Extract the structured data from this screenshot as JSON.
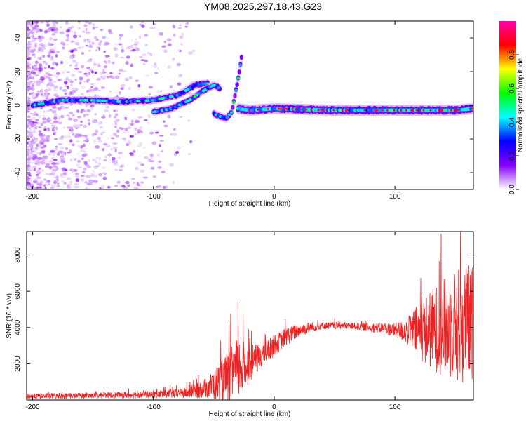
{
  "title": "YM08.2025.297.18.43.G23",
  "colors": {
    "snr_line": "#ee2222",
    "frame": "#000000"
  },
  "chart_data": [
    {
      "type": "heatmap",
      "title": "",
      "xlabel": "Height of straight line (km)",
      "ylabel": "Frequency (Hz)",
      "xlim": [
        -205,
        165
      ],
      "ylim": [
        -50,
        50
      ],
      "xticks": [
        -200,
        -100,
        0,
        100
      ],
      "yticks": [
        -40,
        -20,
        0,
        20,
        40
      ],
      "colorbar": {
        "label": "Normalized spectral amplitude",
        "range": [
          0,
          1
        ],
        "ticks": [
          "0.0",
          "0.2",
          "0.4",
          "0.6",
          "0.8"
        ],
        "colormap": [
          "#ffffff",
          "#8800ff",
          "#0000ff",
          "#00ffff",
          "#00ff00",
          "#ffff00",
          "#ff0000",
          "#ff00aa"
        ]
      },
      "ridges": [
        {
          "name": "",
          "points": [
            [
              -200,
              0
            ],
            [
              -175,
              3
            ],
            [
              -150,
              3
            ],
            [
              -125,
              2
            ],
            [
              -100,
              3
            ],
            [
              -80,
              6
            ],
            [
              -65,
              12
            ],
            [
              -55,
              13
            ]
          ]
        },
        {
          "name": "",
          "points": [
            [
              -100,
              -4
            ],
            [
              -85,
              -2
            ],
            [
              -70,
              3
            ],
            [
              -60,
              8
            ],
            [
              -50,
              12
            ],
            [
              -45,
              10
            ]
          ]
        },
        {
          "name": "",
          "points": [
            [
              -50,
              -5
            ],
            [
              -40,
              -8
            ],
            [
              -35,
              -4
            ],
            [
              -30,
              15
            ],
            [
              -27,
              28
            ]
          ]
        },
        {
          "name": "",
          "points": [
            [
              -30,
              -2
            ],
            [
              -20,
              -3
            ],
            [
              0,
              -2
            ],
            [
              50,
              -3
            ],
            [
              100,
              -3
            ],
            [
              150,
              -3
            ],
            [
              165,
              -2
            ]
          ]
        }
      ]
    },
    {
      "type": "line",
      "title": "",
      "xlabel": "Height of straight line (km)",
      "ylabel": "SNR (10 * v/v)",
      "xlim": [
        -205,
        165
      ],
      "ylim": [
        0,
        9300
      ],
      "xticks": [
        -200,
        -100,
        0,
        100
      ],
      "yticks": [
        2000,
        4000,
        6000,
        8000
      ],
      "series": [
        {
          "name": "",
          "trend_x": [
            -205,
            -150,
            -100,
            -70,
            -55,
            -40,
            -30,
            -20,
            -10,
            0,
            10,
            20,
            30,
            40,
            50,
            60,
            70,
            80,
            90,
            100,
            110,
            120,
            130,
            140,
            150,
            160,
            165
          ],
          "trend_mean": [
            200,
            250,
            300,
            400,
            700,
            1100,
            1700,
            2000,
            2500,
            3000,
            3500,
            3850,
            4000,
            4100,
            4100,
            4100,
            4050,
            4000,
            3950,
            3850,
            3800,
            3800,
            3900,
            4000,
            4100,
            4200,
            4200
          ],
          "trend_spread": [
            150,
            150,
            200,
            300,
            600,
            1400,
            1800,
            1000,
            700,
            600,
            500,
            400,
            300,
            200,
            200,
            200,
            200,
            250,
            300,
            400,
            700,
            1600,
            2200,
            2700,
            3200,
            3400,
            3300
          ]
        }
      ]
    }
  ]
}
